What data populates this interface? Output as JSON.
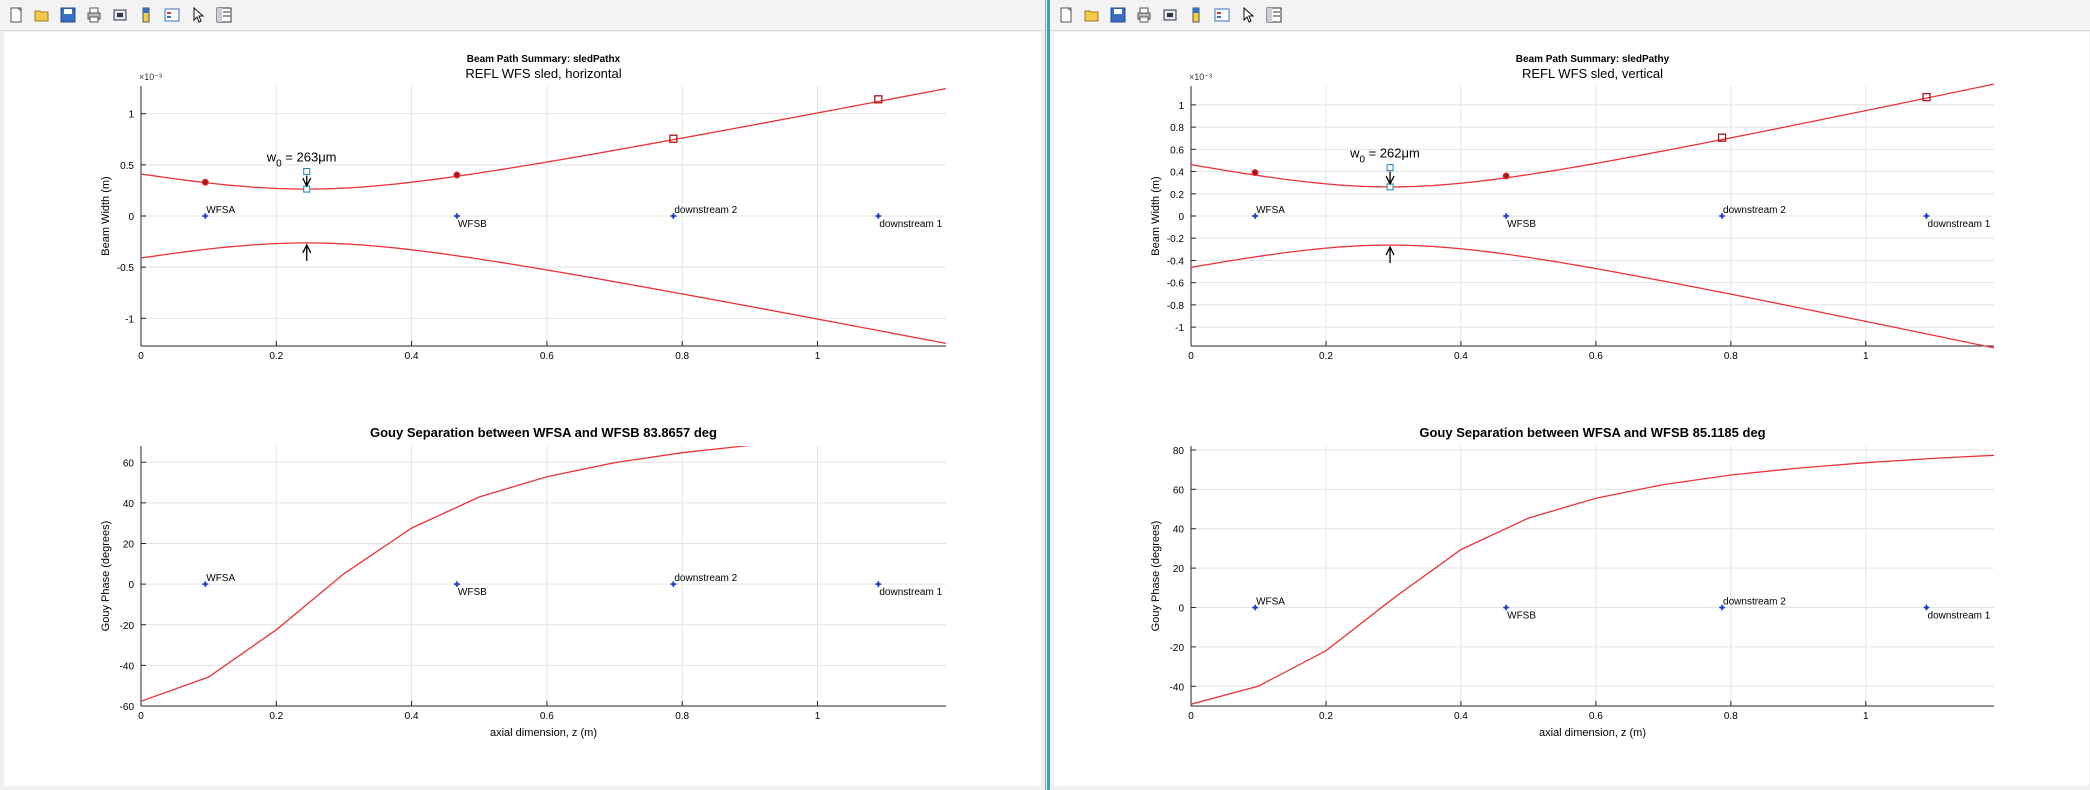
{
  "windows": [
    {
      "id": "left",
      "panels": [
        {
          "title_bold": "Beam Path Summary: sledPathx",
          "title": "REFL WFS sled, horizontal",
          "exponent_text": "×10⁻³",
          "ylabel": "Beam Width (m)",
          "xlabel": "",
          "waist_annotation_pre": "w",
          "waist_annotation_sub": "0",
          "waist_annotation_post": " = 263μm"
        },
        {
          "title_bold": "Gouy Separation between WFSA and WFSB 83.8657  deg",
          "ylabel": "Gouy Phase (degrees)",
          "xlabel": "axial dimension, z (m)"
        }
      ]
    },
    {
      "id": "right",
      "panels": [
        {
          "title_bold": "Beam Path Summary: sledPathy",
          "title": "REFL WFS sled, vertical",
          "exponent_text": "×10⁻³",
          "ylabel": "Beam Width (m)",
          "xlabel": "",
          "waist_annotation_pre": "w",
          "waist_annotation_sub": "0",
          "waist_annotation_post": " = 262μm"
        },
        {
          "title_bold": "Gouy Separation between WFSA and WFSB 85.1185  deg",
          "ylabel": "Gouy Phase (degrees)",
          "xlabel": "axial dimension, z (m)"
        }
      ]
    }
  ],
  "toolbar": {
    "icons": [
      "new-figure-icon",
      "open-file-icon",
      "save-icon",
      "print-icon",
      "print-preview-icon",
      "colorbar-icon",
      "legend-icon",
      "pointer-icon",
      "property-editor-icon"
    ]
  },
  "colors": {
    "beam": "#e8353a",
    "marker": "#1f3fd6",
    "waist": "#1c7fb0",
    "grid": "#e3e3e3",
    "axis": "#262626"
  },
  "chart_data": [
    {
      "type": "line",
      "title": "Beam Path Summary: sledPathx",
      "subtitle": "REFL WFS sled, horizontal",
      "xlabel": "",
      "ylabel": "Beam Width (m)",
      "y_scale_label": "×10⁻³",
      "xlim": [
        0,
        1.19
      ],
      "ylim": [
        -1.27,
        1.27
      ],
      "xticks": [
        0,
        0.2,
        0.4,
        0.6,
        0.8,
        1
      ],
      "yticks": [
        -1,
        -0.5,
        0,
        0.5,
        1
      ],
      "grid": true,
      "waist": {
        "z": 0.245,
        "w": 0.263
      },
      "rayleigh_range": 0.2043,
      "series": [
        {
          "x": [
            0,
            0.1,
            0.2,
            0.245,
            0.3,
            0.4,
            0.5,
            0.6,
            0.7,
            0.8,
            0.9,
            1.0,
            1.1,
            1.19
          ],
          "y": [
            0.407,
            0.328,
            0.272,
            0.263,
            0.276,
            0.355,
            0.466,
            0.592,
            0.727,
            0.867,
            1.01,
            1.154,
            1.3,
            1.43
          ]
        },
        {
          "x": [
            0,
            0.1,
            0.2,
            0.245,
            0.3,
            0.4,
            0.5,
            0.6,
            0.7,
            0.8,
            0.9,
            1.0,
            1.1,
            1.19
          ],
          "y": [
            -0.407,
            -0.328,
            -0.272,
            -0.263,
            -0.276,
            -0.355,
            -0.466,
            -0.592,
            -0.727,
            -0.867,
            -1.01,
            -1.154,
            -1.3,
            -1.43
          ]
        }
      ],
      "components": [
        {
          "name": "WFSA",
          "z": 0.095,
          "w": 0.33
        },
        {
          "name": "WFSB",
          "z": 0.467,
          "w": 0.4
        },
        {
          "name": "downstream 2",
          "z": 0.787,
          "w": 0.755
        },
        {
          "name": "downstream 1",
          "z": 1.09,
          "w": 1.14
        }
      ]
    },
    {
      "type": "line",
      "title": "Gouy Separation between WFSA and WFSB 83.8657  deg",
      "xlabel": "axial dimension, z (m)",
      "ylabel": "Gouy Phase (degrees)",
      "xlim": [
        0,
        1.19
      ],
      "ylim": [
        -60,
        68
      ],
      "xticks": [
        0,
        0.2,
        0.4,
        0.6,
        0.8,
        1
      ],
      "yticks": [
        -60,
        -40,
        -20,
        0,
        20,
        40,
        60
      ],
      "grid": true,
      "series": [
        {
          "x": [
            0,
            0.1,
            0.2,
            0.3,
            0.4,
            0.5,
            0.6,
            0.7,
            0.8,
            0.9,
            1.0,
            1.1,
            1.19
          ],
          "y": [
            -57.7,
            -45.7,
            -22.5,
            5.1,
            27.6,
            42.9,
            52.9,
            59.8,
            64.7,
            68.3,
            71.0,
            73.1,
            74.6
          ]
        }
      ],
      "components": [
        {
          "name": "WFSA",
          "z": 0.095,
          "phase": 0
        },
        {
          "name": "WFSB",
          "z": 0.467,
          "phase": 0
        },
        {
          "name": "downstream 2",
          "z": 0.787,
          "phase": 0
        },
        {
          "name": "downstream 1",
          "z": 1.09,
          "phase": 0
        }
      ]
    },
    {
      "type": "line",
      "title": "Beam Path Summary: sledPathy",
      "subtitle": "REFL WFS sled, vertical",
      "xlabel": "",
      "ylabel": "Beam Width (m)",
      "y_scale_label": "×10⁻³",
      "xlim": [
        0,
        1.19
      ],
      "ylim": [
        -1.17,
        1.17
      ],
      "xticks": [
        0,
        0.2,
        0.4,
        0.6,
        0.8,
        1
      ],
      "yticks": [
        -1,
        -0.8,
        -0.6,
        -0.4,
        -0.2,
        0,
        0.2,
        0.4,
        0.6,
        0.8,
        1
      ],
      "grid": true,
      "waist": {
        "z": 0.295,
        "w": 0.262
      },
      "rayleigh_range": 0.2026,
      "series": [
        {
          "x": [
            0,
            0.1,
            0.2,
            0.295,
            0.4,
            0.5,
            0.6,
            0.7,
            0.8,
            0.9,
            1.0,
            1.1,
            1.19
          ],
          "y": [
            0.455,
            0.38,
            0.291,
            0.262,
            0.294,
            0.38,
            0.468,
            0.598,
            0.734,
            0.875,
            1.02,
            1.16,
            1.29
          ]
        },
        {
          "x": [
            0,
            0.1,
            0.2,
            0.295,
            0.4,
            0.5,
            0.6,
            0.7,
            0.8,
            0.9,
            1.0,
            1.1,
            1.19
          ],
          "y": [
            -0.455,
            -0.38,
            -0.291,
            -0.262,
            -0.294,
            -0.38,
            -0.468,
            -0.598,
            -0.734,
            -0.875,
            -1.02,
            -1.16,
            -1.29
          ]
        }
      ],
      "components": [
        {
          "name": "WFSA",
          "z": 0.095,
          "w": 0.39
        },
        {
          "name": "WFSB",
          "z": 0.467,
          "w": 0.36
        },
        {
          "name": "downstream 2",
          "z": 0.787,
          "w": 0.705
        },
        {
          "name": "downstream 1",
          "z": 1.09,
          "w": 1.07
        }
      ]
    },
    {
      "type": "line",
      "title": "Gouy Separation between WFSA and WFSB 85.1185  deg",
      "xlabel": "axial dimension, z (m)",
      "ylabel": "Gouy Phase (degrees)",
      "xlim": [
        0,
        1.19
      ],
      "ylim": [
        -50,
        82
      ],
      "xticks": [
        0,
        0.2,
        0.4,
        0.6,
        0.8,
        1
      ],
      "yticks": [
        -40,
        -20,
        0,
        20,
        40,
        60,
        80
      ],
      "grid": true,
      "series": [
        {
          "x": [
            0,
            0.1,
            0.2,
            0.3,
            0.4,
            0.5,
            0.6,
            0.7,
            0.8,
            0.9,
            1.0,
            1.1,
            1.19
          ],
          "y": [
            -49.1,
            -39.9,
            -21.9,
            4.7,
            29.4,
            45.4,
            55.5,
            62.4,
            67.3,
            70.8,
            73.5,
            75.7,
            77.3
          ]
        }
      ],
      "components": [
        {
          "name": "WFSA",
          "z": 0.095,
          "phase": 0
        },
        {
          "name": "WFSB",
          "z": 0.467,
          "phase": 0
        },
        {
          "name": "downstream 2",
          "z": 0.787,
          "phase": 0
        },
        {
          "name": "downstream 1",
          "z": 1.09,
          "phase": 0
        }
      ]
    }
  ]
}
